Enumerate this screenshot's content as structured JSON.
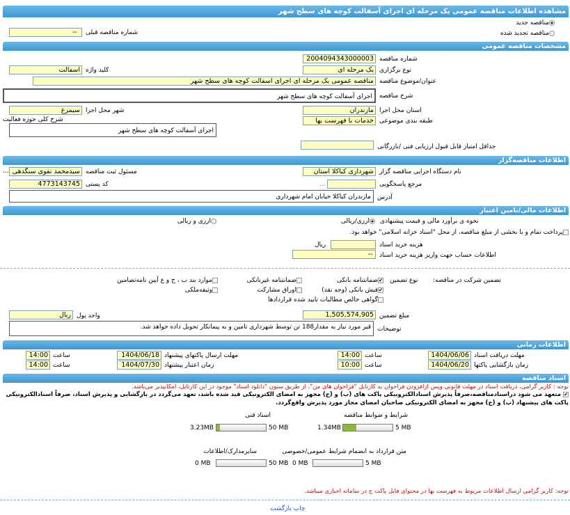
{
  "title": "مشاهده اطلاعات مناقصه عمومی یک مرحله ای اجرای آسفالت کوچه های سطح شهر",
  "tender_type": {
    "new": "مناقصه جدید",
    "renewed": "مناقصه تجدید شده",
    "selected": "new",
    "prev_label": "شماره مناقصه قبلی",
    "prev_value": "--"
  },
  "general": {
    "header": "مشخصات مناقصه عمومی",
    "number_label": "شماره مناقصه",
    "number": "2004094343000003",
    "type_label": "نوع برگزاری",
    "type": "یک مرحله ای",
    "keyword_label": "کلید واژه",
    "keyword": "آسفالت",
    "subject_label": "عنوان/موضوع مناقصه",
    "subject": "مناقصه عمومی یک مرحله ای اجرای آسفالت کوچه های سطح شهر",
    "desc_label": "شرح مناقصه",
    "desc": "اجرای آسفالت کوچه های سطح شهر",
    "province_label": "استان محل اجرا",
    "province": "مازندران",
    "city_label": "شهر محل اجرا",
    "city": "سیمرغ",
    "category_label": "طبقه بندی موضوعی",
    "category": "خدمات با فهرست بها",
    "activity_label": "شرح کلی حوزه فعالیت",
    "activity": "اجرای آسفالت کوچه های سطح شهر",
    "min_score_label": "حداقل امتیاز قابل قبول ارزیابی فنی /بازرگانی",
    "min_score": ""
  },
  "organizer": {
    "header": "اطلاعات مناقصه‌گزار",
    "org_label": "نام دستگاه اجرایی مناقصه گزار",
    "org": "شهرداری کیاکلا استان مازندران",
    "resp_label": "مسئول ثبت مناقصه",
    "resp": "سیدمحمد تقوی سنگدهی",
    "more": "...",
    "ref_label": "مرجع پاسخگویی",
    "ref": "",
    "ref_more": "...",
    "postal_label": "کد پستی",
    "postal": "4773143745",
    "address_label": "آدرس",
    "address": "مازندران کیاکلا خیابان امام شهرداری"
  },
  "finance": {
    "header": "اطلاعات مالی/تامین اعتبار",
    "estimate_label": "نحوه ی برآورد مالی و قیمت پیشنهادی",
    "opt_rial": "ارزی/ریالی",
    "opt_fx": "ارزی و ریالی",
    "selected": "rial",
    "treasury": "پرداخت تمام و یا بخشی از مبلغ مناقصه، از محل \"اسناد خزانه اسلامی\" خواهد بود.",
    "treasury_checked": false,
    "doc_cost_label": "هزینه خرید اسناد",
    "doc_cost": "",
    "doc_cost_unit": "ریال",
    "account_label": "اطلاعات حساب جهت واریز هزینه خرید اسناد",
    "account": "--",
    "guarantee_label": "تضمین شرکت در مناقصه:",
    "guarantee_type_label": "نوع تضمین",
    "guarantees": [
      {
        "label": "ضمانتنامه بانکی",
        "checked": true
      },
      {
        "label": "ضمانتنامه غیربانکی",
        "checked": false
      },
      {
        "label": "موارد بند ب ، ح و ع آیین نامه‌تضامین",
        "checked": false
      },
      {
        "label": "فیش بانکی (وجه نقد)",
        "checked": true
      },
      {
        "label": "اوراق مشارکت",
        "checked": false
      },
      {
        "label": "وثیقه‌ملکی",
        "checked": false
      },
      {
        "label": "گواهی خالص مطالبات تایید شده قراردادها",
        "checked": false
      }
    ],
    "amount_label": "مبلغ تضمین",
    "amount": "1,505,574,905",
    "currency_label": "واحد پول",
    "currency": "ریال",
    "notes_label": "توضیحات",
    "notes": "قیر مورد نیاز به مقدار188 تن توسط شهرداری تامین و به پیمانکار تحویل داده خواهد شد."
  },
  "timing": {
    "header": "اطلاعات زمانی",
    "time_label": "ساعت",
    "doc_deadline_label": "مهلت دریافت اسناد",
    "doc_deadline": "1404/06/06",
    "doc_deadline_time": "14:00",
    "submit_label": "مهلت ارسال پاکتهای پیشنهاد",
    "submit": "1404/06/18",
    "submit_time": "14:00",
    "open_label": "زمان بازگشایی پاکتها",
    "open": "1404/06/20",
    "open_time": "10:00",
    "validity_label": "زمان اعتبار پیشنهاد",
    "validity": "1404/07/30",
    "validity_time": "14:00"
  },
  "documents": {
    "header": "اسناد مناقصه",
    "note1": "توجه : کاربر گرامی، دریافت اسناد در مهلت قانونی وپس ازافزودن فراخوان به کارتابل \"فراخوان های من\"، از طریق ستون \"دانلود اسناد\" موجود در این کارتابل، امکانپذیر می‌باشد.",
    "commit": "متعهد می شود دراسنادمناقصه،صرفاً پذیرش اسنادالکترونیکی پاکت های (ب) و (ج) مجهز به امضای الکترونیکی قید شده باشد، تعهد می‌گردد در بازگشایی و پذیرش اسناد، صرفاً اسنادالکترونیکی پاکت های پیشنهاد (ب) و (ج) مجهز به امضای الکترونیکی صاحبان امضای مجاز مورد پذیرش واقع‌گردد.",
    "commit_checked": true,
    "files": [
      {
        "label": "شرایط و ضوابط مناقصه",
        "size": "1.34MB",
        "max": "5 MB",
        "fill": 0.268
      },
      {
        "label": "اسناد فنی",
        "size": "3.23MB",
        "max": "50 MB",
        "fill": 0.065
      },
      {
        "label": "متن قرارداد به انضمام شرایط عمومی/خصوصی",
        "size": "0 MB",
        "max": "5 MB",
        "fill": 0
      },
      {
        "label": "سایرمدارک/اطلاعات",
        "size": "0 MB",
        "max": "50 MB",
        "fill": 0
      }
    ],
    "note2": "توجه: کاربر گرامی ارسال اطلاعات مربوط به فهرست بها در محتوای فایل پاکت ج در سامانه اجباری میباشد."
  },
  "footer": {
    "print": "چاپ",
    "back": "بازگشت"
  },
  "colors": {
    "header": "#3d97d3",
    "input": "#ffffc0",
    "progress": "#8cb83a",
    "warning": "#e00000"
  }
}
